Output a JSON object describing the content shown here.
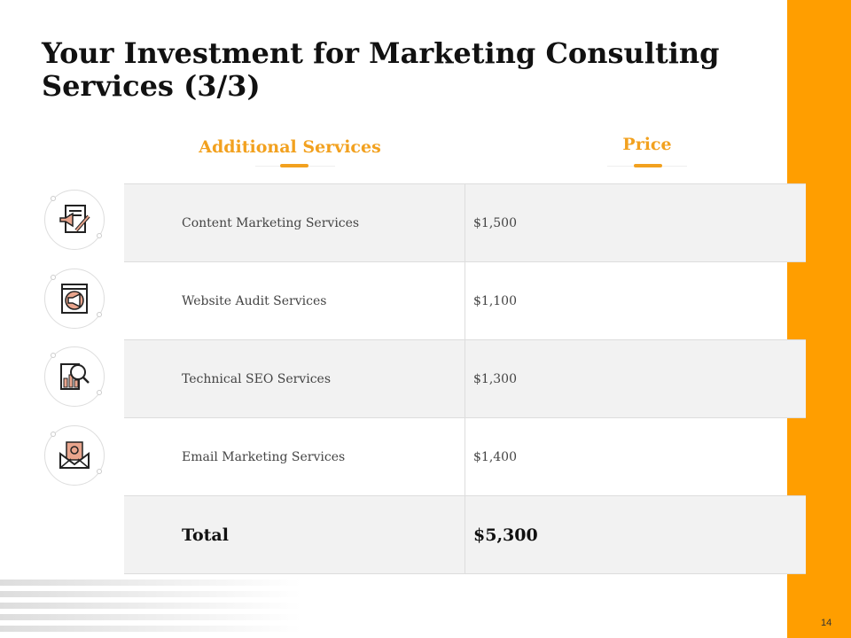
{
  "accent_color": "#FF9E00",
  "title": "Your Investment for Marketing Consulting Services (3/3)",
  "headers": {
    "service": "Additional Services",
    "price": "Price"
  },
  "rows": [
    {
      "service": "Content Marketing Services",
      "price": "$1,500",
      "icon": "content-marketing-icon"
    },
    {
      "service": "Website Audit Services",
      "price": "$1,100",
      "icon": "website-audit-icon"
    },
    {
      "service": "Technical SEO Services",
      "price": "$1,300",
      "icon": "seo-search-icon"
    },
    {
      "service": "Email Marketing Services",
      "price": "$1,400",
      "icon": "email-icon"
    }
  ],
  "total": {
    "label": "Total",
    "price": "$5,300"
  },
  "page_number": "14"
}
